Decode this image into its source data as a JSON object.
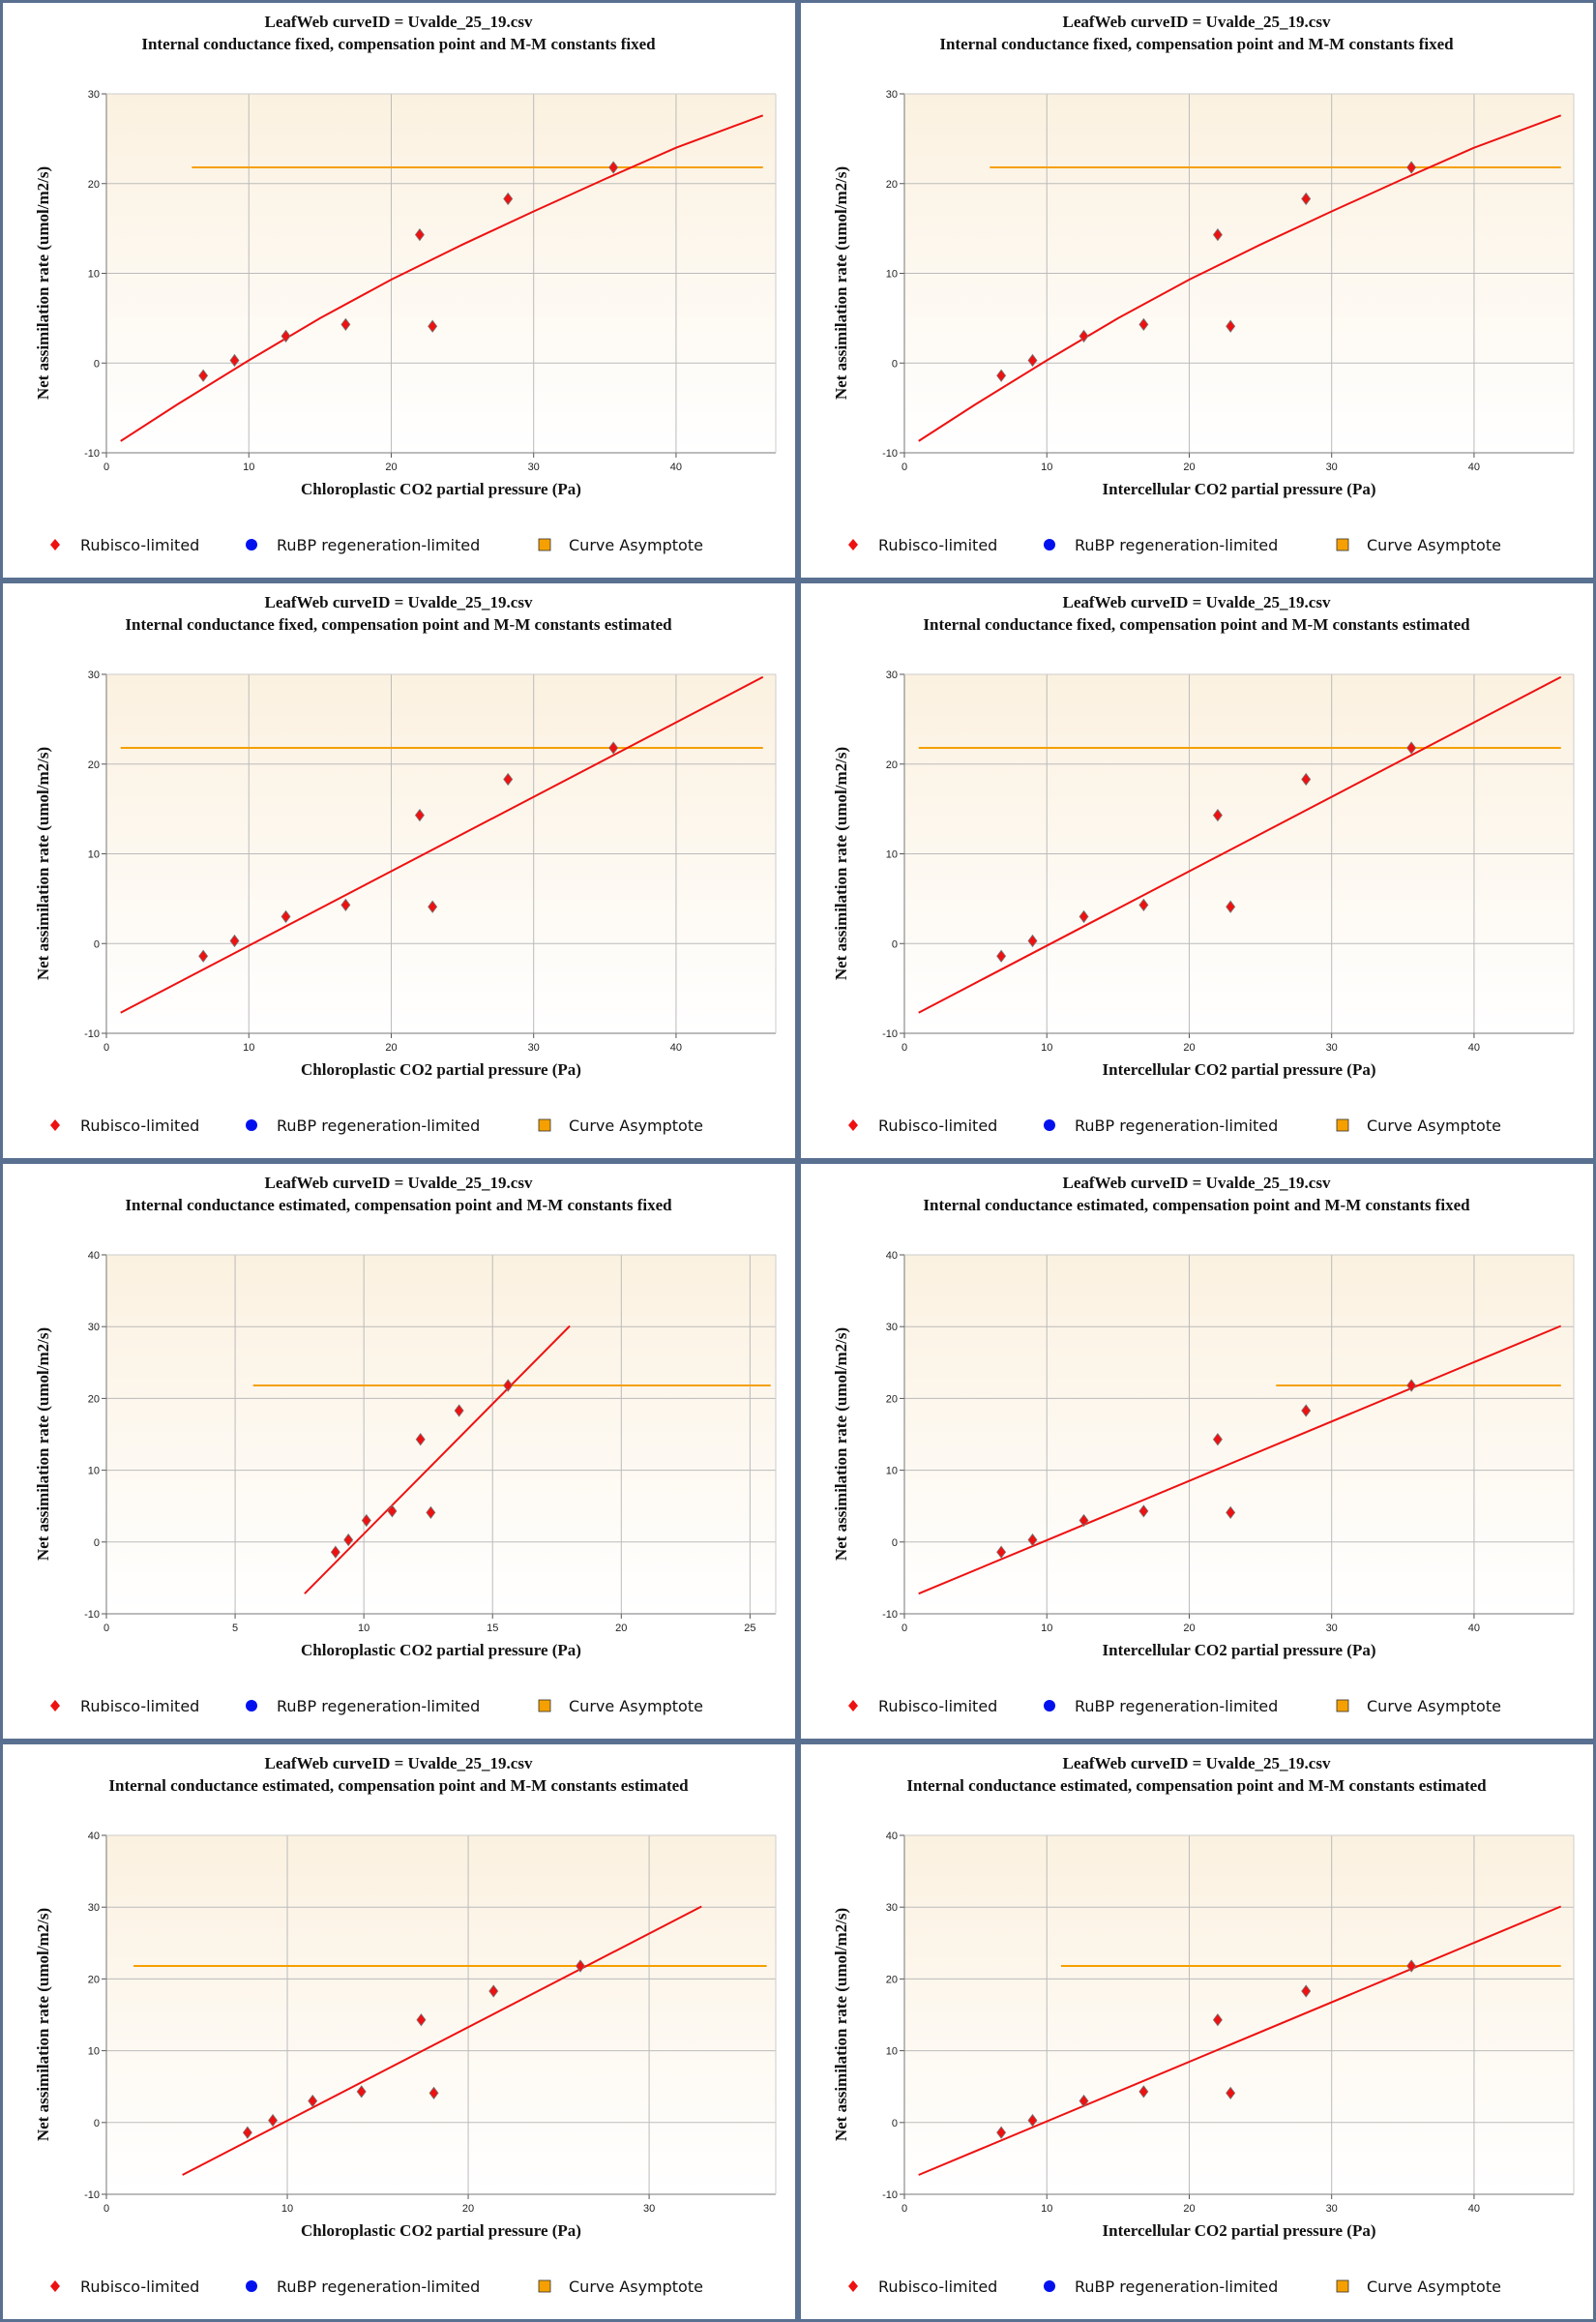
{
  "colors": {
    "fit_line": "#ee1111",
    "asymptote": "#f5a000",
    "rubisco": "#ee1111",
    "rubp": "#0011ee",
    "plot_bg_top": "#fbf1e0",
    "plot_bg_bottom": "#ffffff",
    "gridline": "#bbbbbb",
    "panel_border": "#5a7090"
  },
  "legend": {
    "items": [
      {
        "label": "Rubisco-limited",
        "icon": "red-diamond-icon"
      },
      {
        "label": "RuBP regeneration-limited",
        "icon": "blue-circle-icon"
      },
      {
        "label": "Curve Asymptote",
        "icon": "orange-square-icon"
      }
    ]
  },
  "chart_data": [
    {
      "type": "scatter",
      "title": "LeafWeb curveID = Uvalde_25_19.csv",
      "subtitle": "Internal conductance fixed, compensation point and M-M constants fixed",
      "xlabel": "Chloroplastic CO2 partial pressure (Pa)",
      "ylabel": "Net assimilation rate (umol/m2/s)",
      "xlim": [
        0,
        47
      ],
      "ylim": [
        -10,
        30
      ],
      "xticks": [
        0,
        10,
        20,
        30,
        40
      ],
      "yticks": [
        -10,
        0,
        10,
        20,
        30
      ],
      "grid": true,
      "legend": "bottom",
      "points": [
        [
          6.8,
          -1.4
        ],
        [
          9.0,
          0.3
        ],
        [
          12.6,
          3.0
        ],
        [
          16.8,
          4.3
        ],
        [
          22.0,
          14.3
        ],
        [
          22.9,
          4.1
        ],
        [
          28.2,
          18.3
        ],
        [
          35.6,
          21.8
        ]
      ],
      "fit_curve": [
        [
          1.0,
          -8.7
        ],
        [
          5,
          -4.6
        ],
        [
          10,
          0.3
        ],
        [
          15,
          5.0
        ],
        [
          20,
          9.3
        ],
        [
          25,
          13.2
        ],
        [
          30,
          16.9
        ],
        [
          35,
          20.5
        ],
        [
          40,
          24.0
        ],
        [
          46.1,
          27.6
        ]
      ],
      "asymptote": {
        "y": 21.8,
        "x_from": 6.0,
        "x_to": 46.1
      }
    },
    {
      "type": "scatter",
      "title": "LeafWeb curveID = Uvalde_25_19.csv",
      "subtitle": "Internal conductance fixed, compensation point and M-M constants fixed",
      "xlabel": "Intercellular CO2 partial pressure (Pa)",
      "ylabel": "Net assimilation rate (umol/m2/s)",
      "xlim": [
        0,
        47
      ],
      "ylim": [
        -10,
        30
      ],
      "xticks": [
        0,
        10,
        20,
        30,
        40
      ],
      "yticks": [
        -10,
        0,
        10,
        20,
        30
      ],
      "grid": true,
      "legend": "bottom",
      "points": [
        [
          6.8,
          -1.4
        ],
        [
          9.0,
          0.3
        ],
        [
          12.6,
          3.0
        ],
        [
          16.8,
          4.3
        ],
        [
          22.0,
          14.3
        ],
        [
          22.9,
          4.1
        ],
        [
          28.2,
          18.3
        ],
        [
          35.6,
          21.8
        ]
      ],
      "fit_curve": [
        [
          1.0,
          -8.7
        ],
        [
          5,
          -4.6
        ],
        [
          10,
          0.3
        ],
        [
          15,
          5.0
        ],
        [
          20,
          9.3
        ],
        [
          25,
          13.2
        ],
        [
          30,
          16.9
        ],
        [
          35,
          20.5
        ],
        [
          40,
          24.0
        ],
        [
          46.1,
          27.6
        ]
      ],
      "asymptote": {
        "y": 21.8,
        "x_from": 6.0,
        "x_to": 46.1
      }
    },
    {
      "type": "scatter",
      "title": "LeafWeb curveID = Uvalde_25_19.csv",
      "subtitle": "Internal conductance fixed, compensation point and M-M constants estimated",
      "xlabel": "Chloroplastic CO2 partial pressure (Pa)",
      "ylabel": "Net assimilation rate (umol/m2/s)",
      "xlim": [
        0,
        47
      ],
      "ylim": [
        -10,
        30
      ],
      "xticks": [
        0,
        10,
        20,
        30,
        40
      ],
      "yticks": [
        -10,
        0,
        10,
        20,
        30
      ],
      "grid": true,
      "legend": "bottom",
      "points": [
        [
          6.8,
          -1.4
        ],
        [
          9.0,
          0.3
        ],
        [
          12.6,
          3.0
        ],
        [
          16.8,
          4.3
        ],
        [
          22.0,
          14.3
        ],
        [
          22.9,
          4.1
        ],
        [
          28.2,
          18.3
        ],
        [
          35.6,
          21.8
        ]
      ],
      "fit_curve": [
        [
          1.0,
          -7.7
        ],
        [
          46.1,
          29.7
        ]
      ],
      "asymptote": {
        "y": 21.8,
        "x_from": 1.0,
        "x_to": 46.1
      }
    },
    {
      "type": "scatter",
      "title": "LeafWeb curveID = Uvalde_25_19.csv",
      "subtitle": "Internal conductance fixed, compensation point and M-M constants estimated",
      "xlabel": "Intercellular CO2 partial pressure (Pa)",
      "ylabel": "Net assimilation rate (umol/m2/s)",
      "xlim": [
        0,
        47
      ],
      "ylim": [
        -10,
        30
      ],
      "xticks": [
        0,
        10,
        20,
        30,
        40
      ],
      "yticks": [
        -10,
        0,
        10,
        20,
        30
      ],
      "grid": true,
      "legend": "bottom",
      "points": [
        [
          6.8,
          -1.4
        ],
        [
          9.0,
          0.3
        ],
        [
          12.6,
          3.0
        ],
        [
          16.8,
          4.3
        ],
        [
          22.0,
          14.3
        ],
        [
          22.9,
          4.1
        ],
        [
          28.2,
          18.3
        ],
        [
          35.6,
          21.8
        ]
      ],
      "fit_curve": [
        [
          1.0,
          -7.7
        ],
        [
          46.1,
          29.7
        ]
      ],
      "asymptote": {
        "y": 21.8,
        "x_from": 1.0,
        "x_to": 46.1
      }
    },
    {
      "type": "scatter",
      "title": "LeafWeb curveID = Uvalde_25_19.csv",
      "subtitle": "Internal conductance estimated, compensation point and M-M constants fixed",
      "xlabel": "Chloroplastic CO2 partial pressure (Pa)",
      "ylabel": "Net assimilation rate (umol/m2/s)",
      "xlim": [
        0,
        26
      ],
      "ylim": [
        -10,
        40
      ],
      "xticks": [
        0,
        5,
        10,
        15,
        20,
        25
      ],
      "yticks": [
        -10,
        0,
        10,
        20,
        30,
        40
      ],
      "grid": true,
      "legend": "bottom",
      "points": [
        [
          8.9,
          -1.4
        ],
        [
          9.4,
          0.3
        ],
        [
          10.1,
          3.0
        ],
        [
          11.1,
          4.3
        ],
        [
          12.2,
          14.3
        ],
        [
          12.6,
          4.1
        ],
        [
          13.7,
          18.3
        ],
        [
          15.6,
          21.8
        ]
      ],
      "fit_curve": [
        [
          7.7,
          -7.2
        ],
        [
          18.0,
          30.1
        ]
      ],
      "asymptote": {
        "y": 21.8,
        "x_from": 5.7,
        "x_to": 25.8
      }
    },
    {
      "type": "scatter",
      "title": "LeafWeb curveID = Uvalde_25_19.csv",
      "subtitle": "Internal conductance estimated, compensation point and M-M constants fixed",
      "xlabel": "Intercellular CO2 partial pressure (Pa)",
      "ylabel": "Net assimilation rate (umol/m2/s)",
      "xlim": [
        0,
        47
      ],
      "ylim": [
        -10,
        40
      ],
      "xticks": [
        0,
        10,
        20,
        30,
        40
      ],
      "yticks": [
        -10,
        0,
        10,
        20,
        30,
        40
      ],
      "grid": true,
      "legend": "bottom",
      "points": [
        [
          6.8,
          -1.4
        ],
        [
          9.0,
          0.3
        ],
        [
          12.6,
          3.0
        ],
        [
          16.8,
          4.3
        ],
        [
          22.0,
          14.3
        ],
        [
          22.9,
          4.1
        ],
        [
          28.2,
          18.3
        ],
        [
          35.6,
          21.8
        ]
      ],
      "fit_curve": [
        [
          1.0,
          -7.2
        ],
        [
          46.1,
          30.1
        ]
      ],
      "asymptote": {
        "y": 21.8,
        "x_from": 26.1,
        "x_to": 46.1
      }
    },
    {
      "type": "scatter",
      "title": "LeafWeb curveID = Uvalde_25_19.csv",
      "subtitle": "Internal conductance estimated, compensation point and M-M constants estimated",
      "xlabel": "Chloroplastic CO2 partial pressure (Pa)",
      "ylabel": "Net assimilation rate (umol/m2/s)",
      "xlim": [
        0,
        37
      ],
      "ylim": [
        -10,
        40
      ],
      "xticks": [
        0,
        10,
        20,
        30
      ],
      "yticks": [
        -10,
        0,
        10,
        20,
        30,
        40
      ],
      "grid": true,
      "legend": "bottom",
      "points": [
        [
          7.8,
          -1.4
        ],
        [
          9.2,
          0.3
        ],
        [
          11.4,
          3.0
        ],
        [
          14.1,
          4.3
        ],
        [
          17.4,
          14.3
        ],
        [
          18.1,
          4.1
        ],
        [
          21.4,
          18.3
        ],
        [
          26.2,
          21.8
        ]
      ],
      "fit_curve": [
        [
          4.2,
          -7.3
        ],
        [
          32.9,
          30.1
        ]
      ],
      "asymptote": {
        "y": 21.8,
        "x_from": 1.5,
        "x_to": 36.5
      }
    },
    {
      "type": "scatter",
      "title": "LeafWeb curveID = Uvalde_25_19.csv",
      "subtitle": "Internal conductance estimated, compensation point and M-M constants estimated",
      "xlabel": "Intercellular CO2 partial pressure (Pa)",
      "ylabel": "Net assimilation rate (umol/m2/s)",
      "xlim": [
        0,
        47
      ],
      "ylim": [
        -10,
        40
      ],
      "xticks": [
        0,
        10,
        20,
        30,
        40
      ],
      "yticks": [
        -10,
        0,
        10,
        20,
        30,
        40
      ],
      "grid": true,
      "legend": "bottom",
      "points": [
        [
          6.8,
          -1.4
        ],
        [
          9.0,
          0.3
        ],
        [
          12.6,
          3.0
        ],
        [
          16.8,
          4.3
        ],
        [
          22.0,
          14.3
        ],
        [
          22.9,
          4.1
        ],
        [
          28.2,
          18.3
        ],
        [
          35.6,
          21.8
        ]
      ],
      "fit_curve": [
        [
          1.0,
          -7.3
        ],
        [
          46.1,
          30.1
        ]
      ],
      "asymptote": {
        "y": 21.8,
        "x_from": 11.0,
        "x_to": 46.1
      }
    }
  ]
}
